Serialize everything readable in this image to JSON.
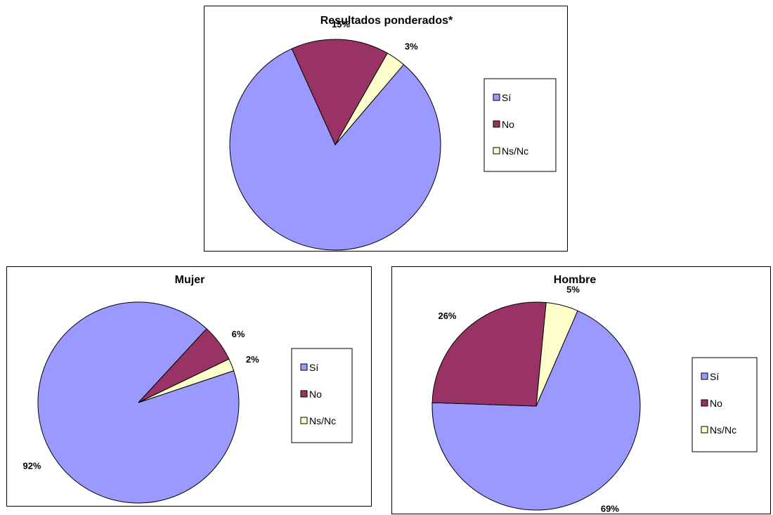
{
  "chart_data": [
    {
      "type": "pie",
      "title": "Resultados ponderados*",
      "categories": [
        "Sí",
        "No",
        "Ns/Nc"
      ],
      "values": [
        82,
        15,
        3
      ],
      "value_labels": [
        "82%",
        "15%",
        "3%"
      ],
      "colors": [
        "#9999FF",
        "#993366",
        "#FFFFCC"
      ],
      "legend": {
        "position": "right",
        "entries": [
          "Sí",
          "No",
          "Ns/Nc"
        ]
      }
    },
    {
      "type": "pie",
      "title": "Mujer",
      "categories": [
        "Sí",
        "No",
        "Ns/Nc"
      ],
      "values": [
        92,
        6,
        2
      ],
      "value_labels": [
        "92%",
        "6%",
        "2%"
      ],
      "colors": [
        "#9999FF",
        "#993366",
        "#FFFFCC"
      ],
      "legend": {
        "position": "right",
        "entries": [
          "Sí",
          "No",
          "Ns/Nc"
        ]
      }
    },
    {
      "type": "pie",
      "title": "Hombre",
      "categories": [
        "Sí",
        "No",
        "Ns/Nc"
      ],
      "values": [
        69,
        26,
        5
      ],
      "value_labels": [
        "69%",
        "26%",
        "5%"
      ],
      "colors": [
        "#9999FF",
        "#993366",
        "#FFFFCC"
      ],
      "legend": {
        "position": "right",
        "entries": [
          "Sí",
          "No",
          "Ns/Nc"
        ]
      }
    }
  ]
}
